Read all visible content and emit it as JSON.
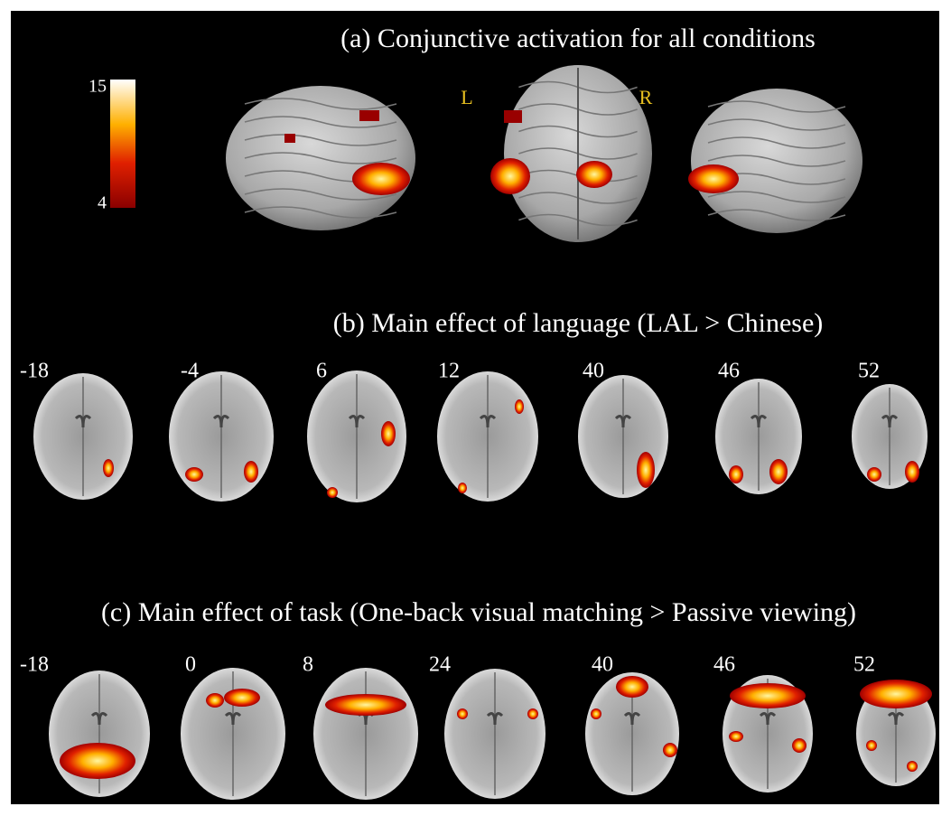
{
  "colorbar": {
    "max": "15",
    "min": "4"
  },
  "panels": [
    {
      "title": "(a) Conjunctive activation for all conditions",
      "labels": [
        "L",
        "R"
      ]
    },
    {
      "title": "(b) Main effect of language (LAL > Chinese)",
      "slices": [
        "-18",
        "-4",
        "6",
        "12",
        "40",
        "46",
        "52"
      ]
    },
    {
      "title": "(c) Main effect of task (One-back visual matching > Passive viewing)",
      "slices": [
        "-18",
        "0",
        "8",
        "24",
        "40",
        "46",
        "52"
      ]
    }
  ]
}
